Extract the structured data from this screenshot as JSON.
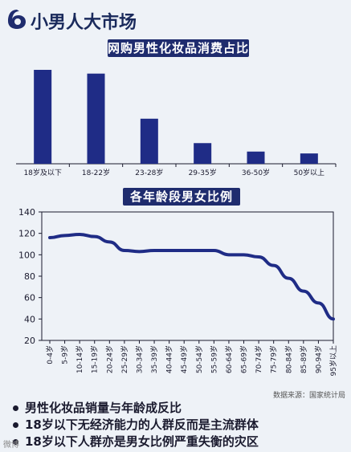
{
  "header": {
    "title": "小男人大市场"
  },
  "chart_data": [
    {
      "type": "bar",
      "title": "网购男性化妆品消费占比",
      "categories": [
        "18岁及以下",
        "18-22岁",
        "23-28岁",
        "29-35岁",
        "36-50岁",
        "50岁以上"
      ],
      "values": [
        100,
        96,
        48,
        22,
        13,
        11
      ],
      "ylim": [
        0,
        100
      ],
      "color": "#1f2c86"
    },
    {
      "type": "line",
      "title": "各年龄段男女比例",
      "x": [
        "0-4岁",
        "5-9岁",
        "10-14岁",
        "15-19岁",
        "20-24岁",
        "25-29岁",
        "30-34岁",
        "35-39岁",
        "40-44岁",
        "45-49岁",
        "50-54岁",
        "55-59岁",
        "60-64岁",
        "65-69岁",
        "70-74岁",
        "75-79岁",
        "80-84岁",
        "85-89岁",
        "90-94岁",
        "95岁以上"
      ],
      "values": [
        116,
        118,
        119,
        117,
        112,
        104,
        103,
        104,
        104,
        104,
        104,
        104,
        100,
        100,
        98,
        90,
        78,
        66,
        55,
        40
      ],
      "yticks": [
        20,
        40,
        60,
        80,
        100,
        120,
        140
      ],
      "ylim": [
        20,
        140
      ],
      "color": "#1f2c86"
    }
  ],
  "source": "数据来源：国家统计局",
  "bullets": [
    "男性化妆品销量与年龄成反比",
    "18岁以下无经济能力的人群反而是主流群体",
    "18岁以下人群亦是男女比例严重失衡的灾区"
  ],
  "watermark": "微博"
}
